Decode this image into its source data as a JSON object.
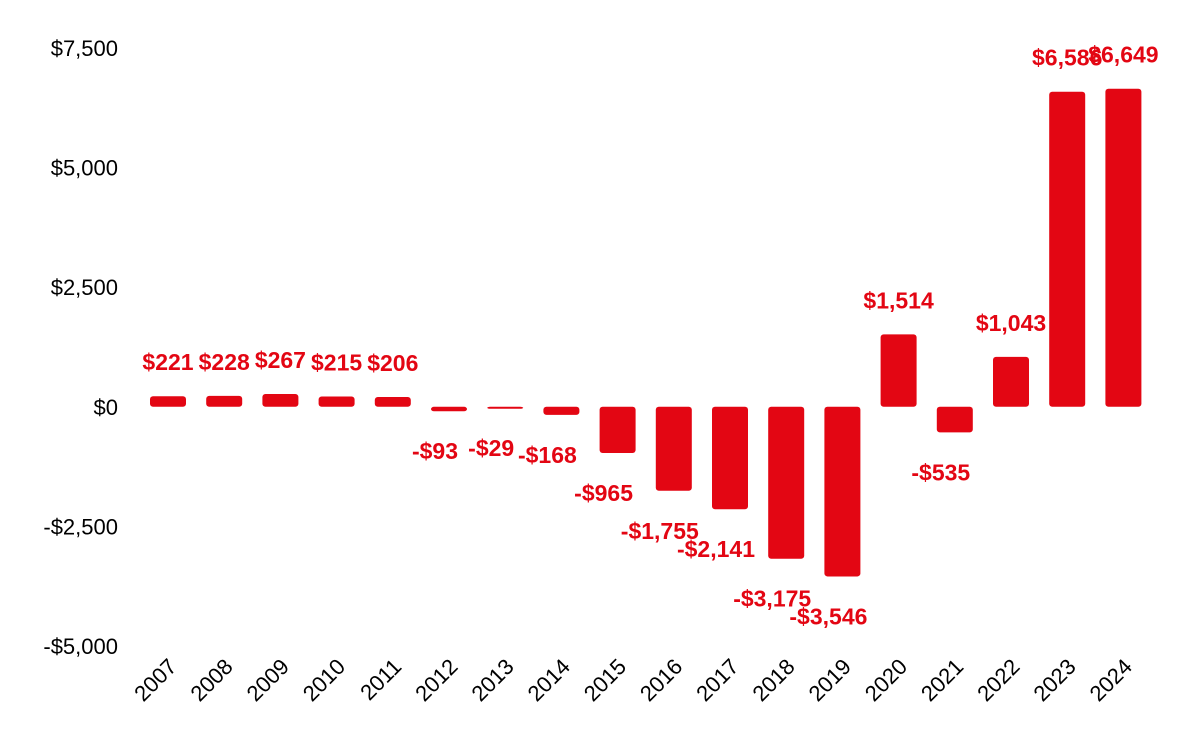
{
  "chart_data": {
    "type": "bar",
    "title": "",
    "xlabel": "",
    "ylabel": "",
    "categories": [
      "2007",
      "2008",
      "2009",
      "2010",
      "2011",
      "2012",
      "2013",
      "2014",
      "2015",
      "2016",
      "2017",
      "2018",
      "2019",
      "2020",
      "2021",
      "2022",
      "2023",
      "2024"
    ],
    "values": [
      221,
      228,
      267,
      215,
      206,
      -93,
      -29,
      -168,
      -965,
      -1755,
      -2141,
      -3175,
      -3546,
      1514,
      -535,
      1043,
      6586,
      6649
    ],
    "data_labels": [
      "$221",
      "$228",
      "$267",
      "$215",
      "$206",
      "-$93",
      "-$29",
      "-$168",
      "-$965",
      "-$1,755",
      "-$2,141",
      "-$3,175",
      "-$3,546",
      "$1,514",
      "-$535",
      "$1,043",
      "$6,586",
      "$6,649"
    ],
    "ylim": [
      -5000,
      7500
    ],
    "y_ticks": [
      7500,
      5000,
      2500,
      0,
      -2500,
      -5000
    ],
    "y_tick_labels": [
      "$7,500",
      "$5,000",
      "$2,500",
      "$0",
      "-$2,500",
      "-$5,000"
    ],
    "grid": false,
    "legend": "none",
    "colors": {
      "bar": "#e30613",
      "label": "#e30613",
      "axis_text": "#000000"
    }
  }
}
